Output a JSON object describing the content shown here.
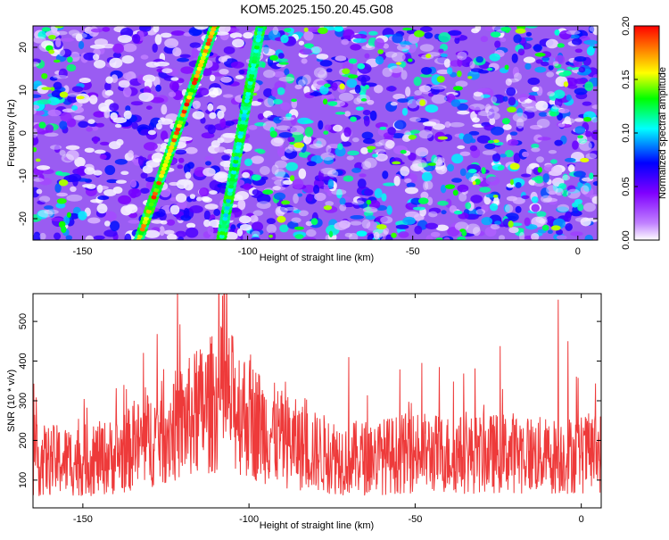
{
  "title": "KOM5.2025.150.20.45.G08",
  "chart_data": [
    {
      "type": "heatmap",
      "xlabel": "Height of straight line (km)",
      "ylabel": "Frequency (Hz)",
      "xlim": [
        -165,
        6
      ],
      "ylim": [
        -25,
        25
      ],
      "xticks": [
        -150,
        -100,
        -50,
        0
      ],
      "yticks": [
        -20,
        -10,
        0,
        10,
        20
      ],
      "colorbar": {
        "label": "Normalized spectral amplitude",
        "range": [
          0.0,
          0.2
        ],
        "ticks": [
          0.0,
          0.05,
          0.1,
          0.15,
          0.2
        ],
        "tick_labels": [
          "0.00",
          "0.05",
          "0.10",
          "0.15",
          "0.20"
        ],
        "colors": [
          "#ffffff",
          "#7f00ff",
          "#0000ff",
          "#00ffff",
          "#00ff00",
          "#ffff00",
          "#ff7f00",
          "#ff0000"
        ]
      },
      "stripes": [
        {
          "x_at_ymin": -133,
          "x_at_ymax": -110,
          "peak_amplitude": 0.2
        },
        {
          "x_at_ymin": -108,
          "x_at_ymax": -96,
          "peak_amplitude": 0.13
        }
      ],
      "grid": false
    },
    {
      "type": "line",
      "xlabel": "Height of straight line (km)",
      "ylabel": "SNR (10 * v/v)",
      "xlim": [
        -165,
        6
      ],
      "ylim": [
        30,
        570
      ],
      "xticks": [
        -150,
        -100,
        -50,
        0
      ],
      "yticks": [
        100,
        200,
        300,
        400,
        500
      ],
      "color": "#ee3a3a",
      "baseline": [
        [
          -165,
          140
        ],
        [
          -150,
          140
        ],
        [
          -140,
          150
        ],
        [
          -130,
          190
        ],
        [
          -120,
          230
        ],
        [
          -112,
          270
        ],
        [
          -108,
          290
        ],
        [
          -104,
          270
        ],
        [
          -98,
          230
        ],
        [
          -90,
          190
        ],
        [
          -80,
          160
        ],
        [
          -70,
          145
        ],
        [
          -60,
          150
        ],
        [
          -50,
          160
        ],
        [
          -40,
          155
        ],
        [
          -30,
          155
        ],
        [
          -20,
          160
        ],
        [
          -10,
          150
        ],
        [
          0,
          155
        ],
        [
          6,
          160
        ]
      ],
      "peaks": [
        [
          -108,
          565
        ],
        [
          -7,
          555
        ],
        [
          -165,
          320
        ],
        [
          -70,
          410
        ],
        [
          -4,
          450
        ]
      ],
      "grid": false
    }
  ]
}
